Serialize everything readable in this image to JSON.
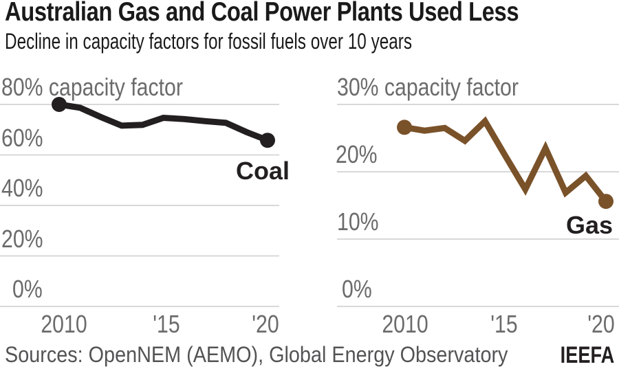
{
  "header": {
    "title": "Australian Gas and Coal Power Plants Used Less",
    "subtitle": "Decline in capacity factors for fossil fuels over 10 years"
  },
  "footer": {
    "sources": "Sources: OpenNEM (AEMO), Global Energy Observatory",
    "attribution": "IEEFA"
  },
  "colors": {
    "coal_line": "#231f20",
    "gas_line": "#7a5229",
    "gridline": "#d8d8d8",
    "tick_text": "#6b6b6b",
    "title_text": "#1a1a1a",
    "source_text": "#535355",
    "series_label_text": "#231f20",
    "background": "#ffffff"
  },
  "chart_data": [
    {
      "type": "line",
      "series_label": "Coal",
      "color_key": "coal_line",
      "x": [
        2010,
        2011,
        2012,
        2013,
        2014,
        2015,
        2016,
        2017,
        2018,
        2019,
        2020
      ],
      "values": [
        80,
        78.7,
        75,
        71.6,
        71.9,
        74.7,
        74.2,
        73.4,
        72.7,
        69,
        65.8
      ],
      "unit": "% capacity factor",
      "ylim": [
        0,
        80
      ],
      "xlim": [
        2010,
        2020
      ],
      "grid": true,
      "markers": "first-and-last-point",
      "yticks": [
        {
          "value": 80,
          "label": "80% capacity factor"
        },
        {
          "value": 60,
          "label": "60%"
        },
        {
          "value": 40,
          "label": "40%"
        },
        {
          "value": 20,
          "label": "20%"
        },
        {
          "value": 0,
          "label": "0%"
        }
      ],
      "xticks": [
        {
          "value": 2010,
          "label": "2010"
        },
        {
          "value": 2015,
          "label": "'15"
        },
        {
          "value": 2020,
          "label": "'20"
        }
      ]
    },
    {
      "type": "line",
      "series_label": "Gas",
      "color_key": "gas_line",
      "x": [
        2010,
        2011,
        2012,
        2013,
        2014,
        2015,
        2016,
        2017,
        2018,
        2019,
        2020
      ],
      "values": [
        26.6,
        26.1,
        26.5,
        24.6,
        27.5,
        22.4,
        17.4,
        23.5,
        16.9,
        19.4,
        15.6
      ],
      "unit": "% capacity factor",
      "ylim": [
        0,
        30
      ],
      "xlim": [
        2010,
        2020
      ],
      "grid": true,
      "markers": "first-and-last-point",
      "yticks": [
        {
          "value": 30,
          "label": "30% capacity factor"
        },
        {
          "value": 20,
          "label": "20%"
        },
        {
          "value": 10,
          "label": "10%"
        },
        {
          "value": 0,
          "label": "0%"
        }
      ],
      "xticks": [
        {
          "value": 2010,
          "label": "2010"
        },
        {
          "value": 2015,
          "label": "'15"
        },
        {
          "value": 2020,
          "label": "'20"
        }
      ]
    }
  ]
}
